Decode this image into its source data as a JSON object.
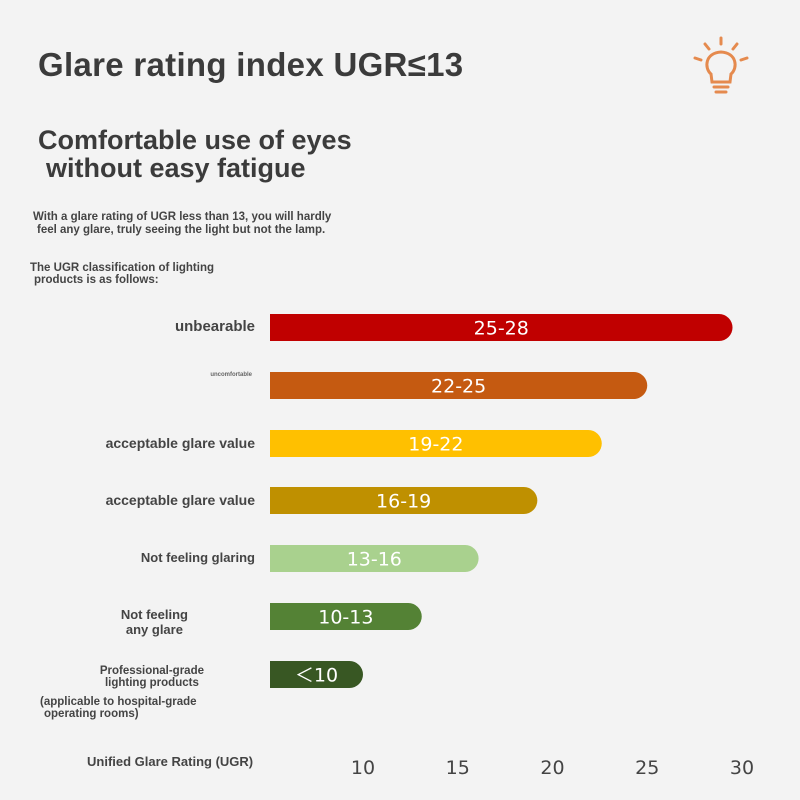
{
  "header": {
    "title": "Glare rating index UGR≤13",
    "subtitle_line1": "Comfortable use of eyes",
    "subtitle_line2": "without easy fatigue",
    "desc_line1": "With a glare rating of UGR less than 13, you will hardly",
    "desc_line2": "feel any glare, truly seeing the light but not the lamp.",
    "intro_line1": "The UGR classification of lighting",
    "intro_line2": "products is as follows:",
    "icon": "lightbulb-icon",
    "icon_color": "#e58a4e"
  },
  "chart_data": {
    "type": "bar",
    "orientation": "horizontal",
    "xlabel": "Unified Glare Rating (UGR)",
    "xlim": [
      5,
      30
    ],
    "xticks": [
      10,
      15,
      20,
      25,
      30
    ],
    "grid": false,
    "legend": "none",
    "categories": [
      {
        "lines": [
          "unbearable"
        ]
      },
      {
        "lines": [
          "uncomfortable"
        ]
      },
      {
        "lines": [
          "acceptable glare value"
        ]
      },
      {
        "lines": [
          "acceptable glare value"
        ]
      },
      {
        "lines": [
          "Not feeling glaring"
        ]
      },
      {
        "lines": [
          "Not feeling",
          "any glare"
        ]
      },
      {
        "lines": [
          "Professional-grade",
          "lighting products"
        ],
        "note_lines": [
          "(applicable to hospital-grade",
          "operating rooms)"
        ]
      }
    ],
    "values": [
      29.5,
      25,
      22.6,
      19.2,
      16.1,
      13.1,
      10
    ],
    "bar_labels": [
      "25-28",
      "22-25",
      "19-22",
      "16-19",
      "13-16",
      "10-13",
      "＜10"
    ],
    "colors": [
      "#c00000",
      "#c55a11",
      "#ffc000",
      "#bf9000",
      "#a9d18e",
      "#548235",
      "#385723"
    ]
  }
}
